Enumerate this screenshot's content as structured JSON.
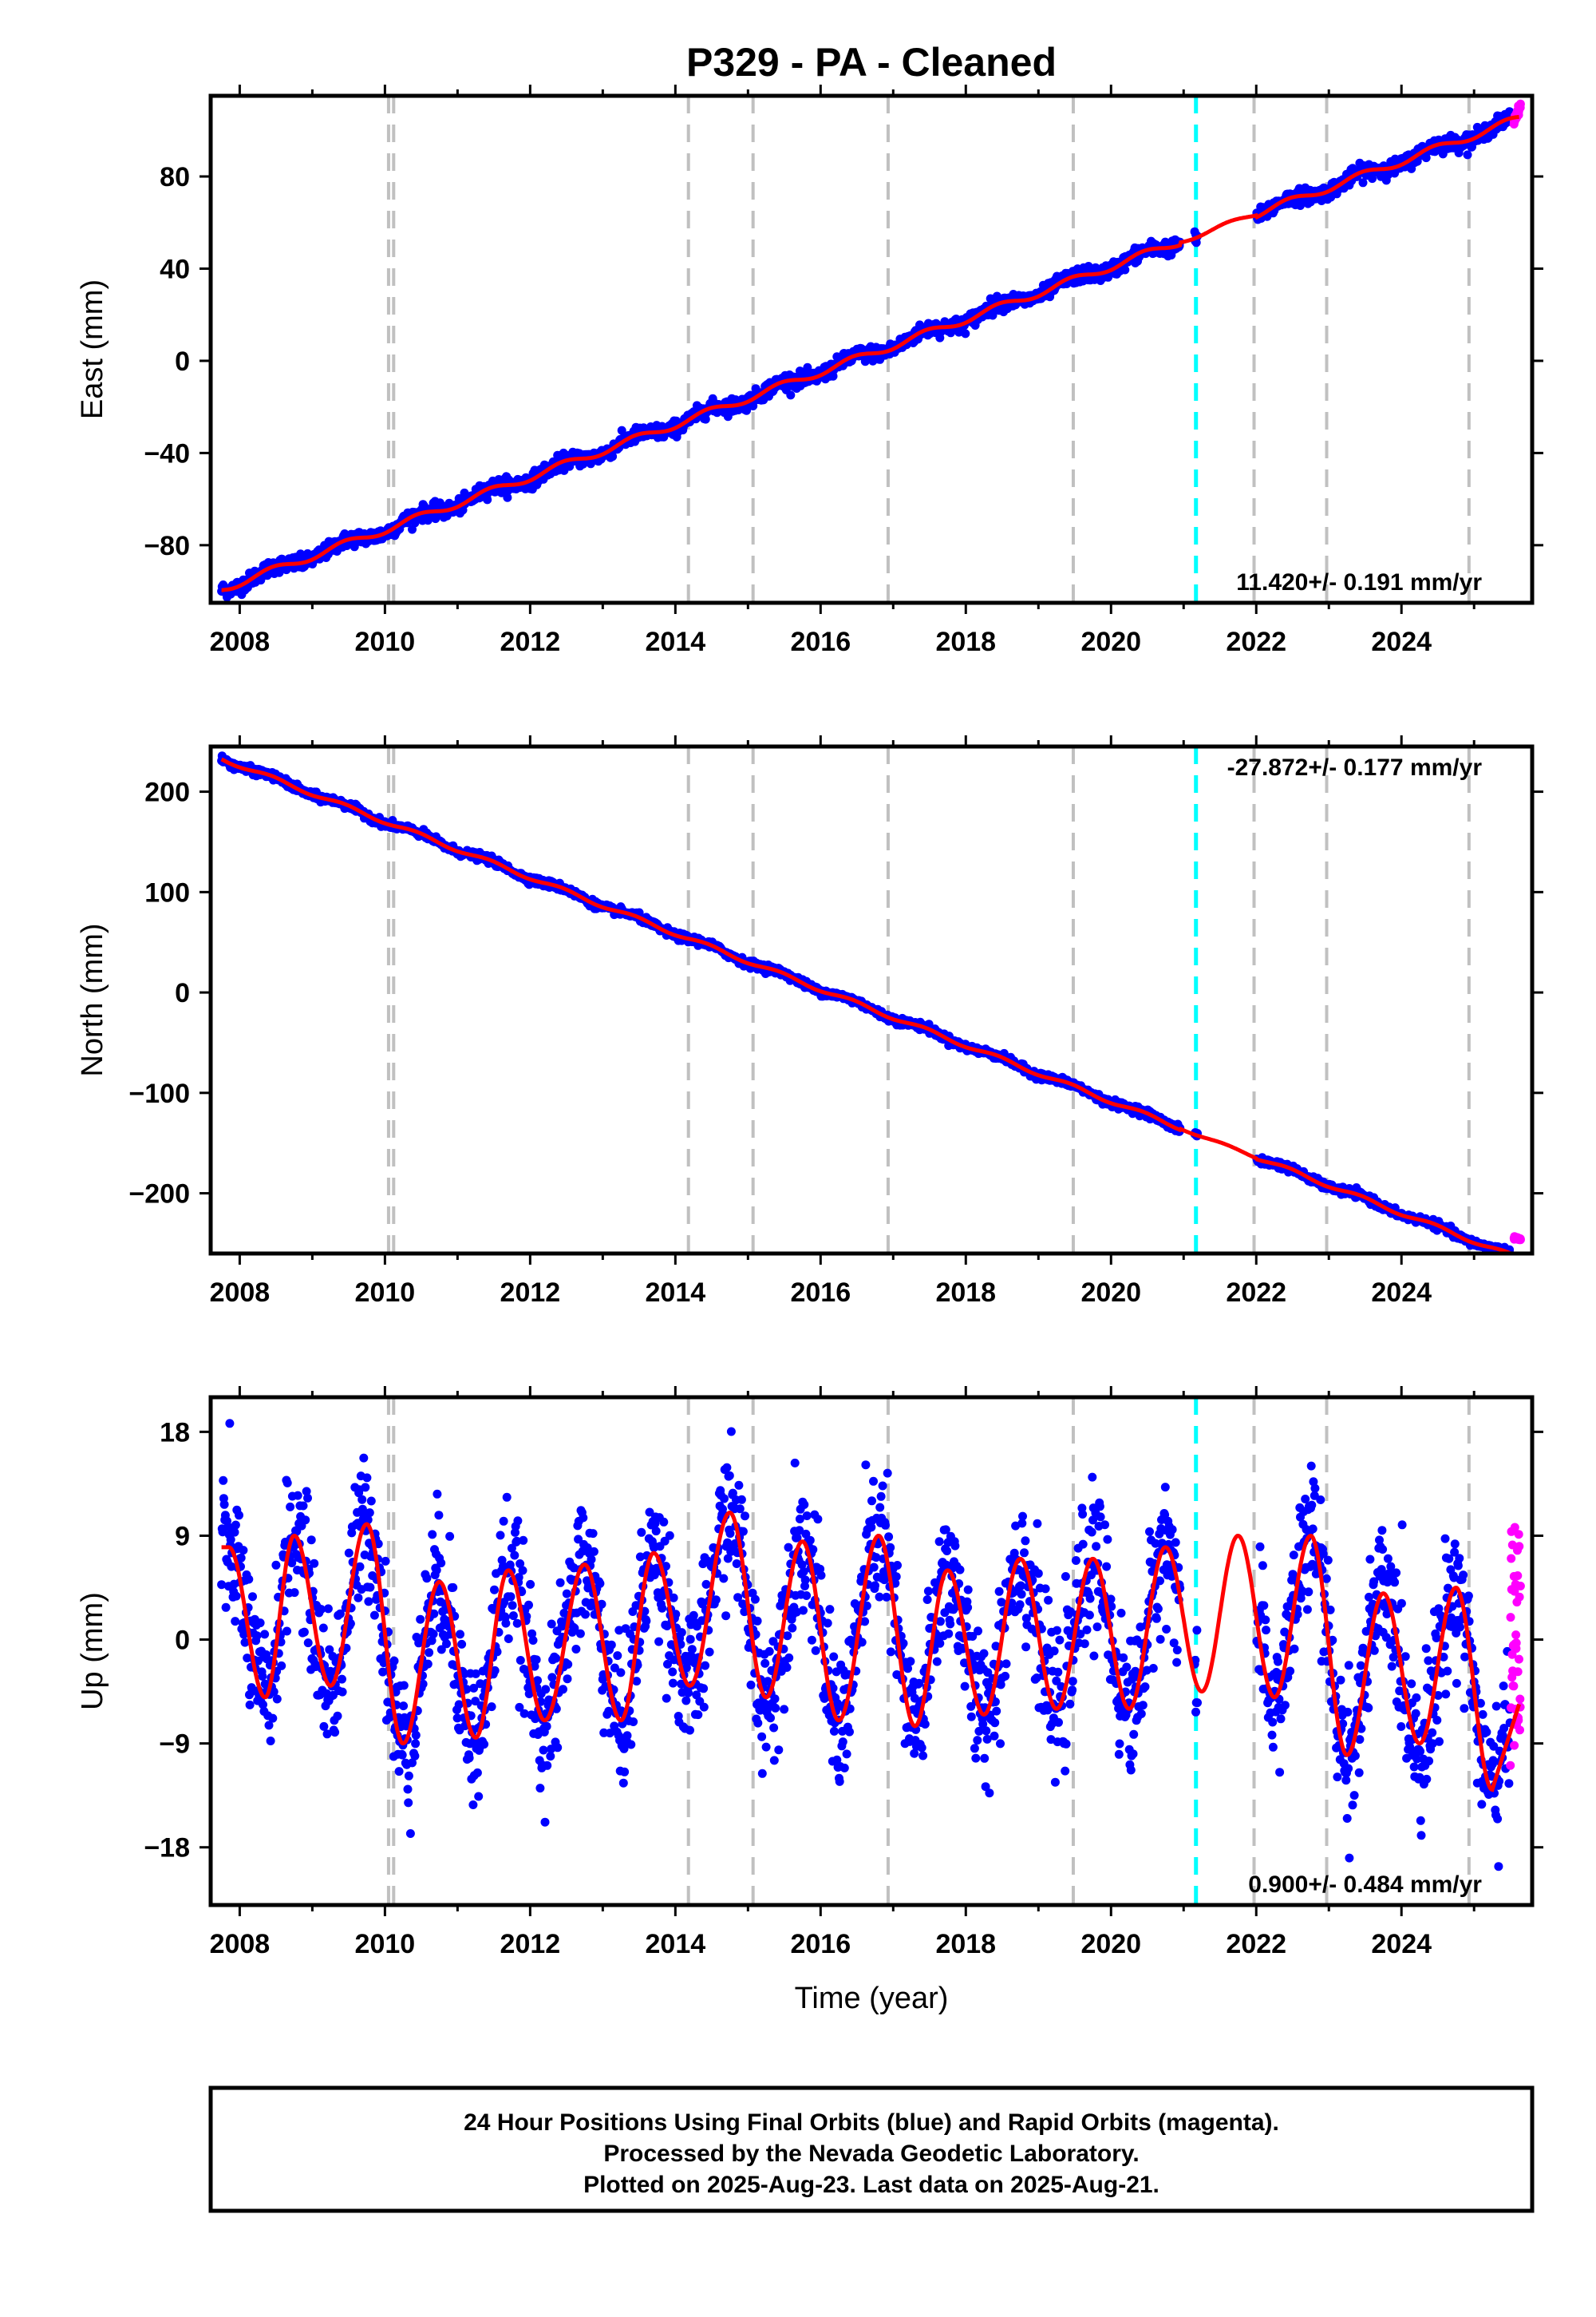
{
  "chart_data": {
    "title": "P329  - PA - Cleaned",
    "type": "scatter",
    "colors": {
      "final_orbits": "#0000ff",
      "rapid_orbits": "#ff00ff",
      "model_fit": "#ff0000",
      "equipment_change": "#c0c0c0",
      "earthquake_event": "#00ffff"
    },
    "xlim": [
      2007.6,
      2025.8
    ],
    "x_ticks": [
      "2008",
      "2010",
      "2012",
      "2014",
      "2016",
      "2018",
      "2020",
      "2022",
      "2024"
    ],
    "xlabel": "Time (year)",
    "grey_dashed_lines": [
      2010.05,
      2010.12,
      2014.18,
      2015.07,
      2016.93,
      2019.48,
      2021.97,
      2022.97,
      2024.93
    ],
    "cyan_dashed_line": 2021.17,
    "data_gap": [
      2020.95,
      2022.0
    ],
    "panels": [
      {
        "id": "east",
        "ylabel": "East (mm)",
        "ylim": [
          -105,
          115
        ],
        "y_ticks": [
          "−80",
          "−40",
          "0",
          "40",
          "80"
        ],
        "y_tick_values": [
          -80,
          -40,
          0,
          40,
          80
        ],
        "rate_label": "11.420+/- 0.191 mm/yr",
        "rate_position": "bottom-right",
        "trend": {
          "t0": 2007.75,
          "v0": -99,
          "slope": 11.42
        },
        "seasonal_amplitude": 1.6,
        "scatter_noise": 1.6,
        "rapid_segment": {
          "x": [
            2025.55,
            2025.64
          ],
          "y": [
            104,
            111
          ]
        }
      },
      {
        "id": "north",
        "ylabel": "North (mm)",
        "ylim": [
          -260,
          245
        ],
        "y_ticks": [
          "−200",
          "−100",
          "0",
          "100",
          "200"
        ],
        "y_tick_values": [
          -200,
          -100,
          0,
          100,
          200
        ],
        "rate_label": "-27.872+/- 0.177 mm/yr",
        "rate_position": "top-right",
        "trend": {
          "t0": 2007.75,
          "v0": 233,
          "slope": -27.872
        },
        "seasonal_amplitude": 2.0,
        "scatter_noise": 1.8,
        "rapid_segment": {
          "x": [
            2025.55,
            2025.64
          ],
          "y": [
            -244,
            -246
          ]
        }
      },
      {
        "id": "up",
        "ylabel": "Up (mm)",
        "ylim": [
          -23,
          21
        ],
        "y_ticks": [
          "−18",
          "−9",
          "0",
          "9",
          "18"
        ],
        "y_tick_values": [
          -18,
          -9,
          0,
          9,
          18
        ],
        "rate_label": "0.900+/- 0.484 mm/yr",
        "rate_position": "bottom-right",
        "trend": {
          "t0": 2007.75,
          "v0": 0.5,
          "slope": 0.9
        },
        "seasonal_peaks": [
          {
            "year": 2007.85,
            "max": 8,
            "min": -5
          },
          {
            "year": 2008.75,
            "max": 9,
            "min": -4
          },
          {
            "year": 2009.75,
            "max": 10,
            "min": -9
          },
          {
            "year": 2010.75,
            "max": 5,
            "min": -8.5
          },
          {
            "year": 2011.7,
            "max": 6,
            "min": -7
          },
          {
            "year": 2012.75,
            "max": 6.5,
            "min": -7
          },
          {
            "year": 2013.7,
            "max": 7.5,
            "min": -4
          },
          {
            "year": 2014.75,
            "max": 11,
            "min": -5
          },
          {
            "year": 2015.75,
            "max": 8.5,
            "min": -7
          },
          {
            "year": 2016.8,
            "max": 9,
            "min": -7.5
          },
          {
            "year": 2017.75,
            "max": 6,
            "min": -6.5
          },
          {
            "year": 2018.75,
            "max": 7,
            "min": -6
          },
          {
            "year": 2019.75,
            "max": 7,
            "min": -6
          },
          {
            "year": 2020.75,
            "max": 8,
            "min": -4.5
          },
          {
            "year": 2021.75,
            "max": 9,
            "min": -5
          },
          {
            "year": 2022.75,
            "max": 9,
            "min": -10
          },
          {
            "year": 2023.75,
            "max": 4,
            "min": -9
          },
          {
            "year": 2024.75,
            "max": 4.5,
            "min": -13
          }
        ],
        "scatter_noise": 3.0,
        "rapid_segment": {
          "x": [
            2025.5,
            2025.64
          ],
          "y": [
            -11,
            10
          ]
        }
      }
    ],
    "footnote": [
      "24 Hour Positions Using Final Orbits (blue) and Rapid Orbits (magenta).",
      "Processed by the Nevada Geodetic Laboratory.",
      "Plotted on 2025-Aug-23. Last data on 2025-Aug-21."
    ]
  }
}
